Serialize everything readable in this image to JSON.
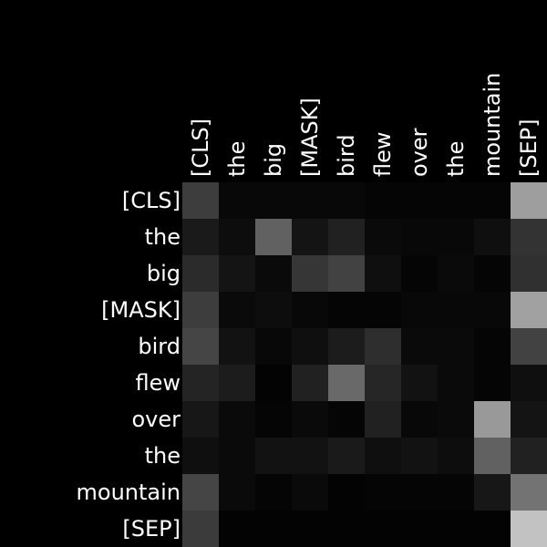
{
  "chart_data": {
    "type": "heatmap",
    "title": "",
    "xlabel": "",
    "ylabel": "",
    "colormap": "grayscale",
    "background": "#000000",
    "x_labels": [
      "[CLS]",
      "the",
      "big",
      "[MASK]",
      "bird",
      "flew",
      "over",
      "the",
      "mountain",
      "[SEP]"
    ],
    "y_labels": [
      "[CLS]",
      "the",
      "big",
      "[MASK]",
      "bird",
      "flew",
      "over",
      "the",
      "mountain",
      "[SEP]"
    ],
    "value_range": [
      0,
      1
    ],
    "values": [
      [
        0.24,
        0.03,
        0.03,
        0.03,
        0.03,
        0.02,
        0.02,
        0.02,
        0.02,
        0.62
      ],
      [
        0.1,
        0.05,
        0.38,
        0.08,
        0.13,
        0.04,
        0.03,
        0.03,
        0.06,
        0.2
      ],
      [
        0.17,
        0.08,
        0.04,
        0.21,
        0.26,
        0.06,
        0.02,
        0.04,
        0.02,
        0.19
      ],
      [
        0.24,
        0.04,
        0.05,
        0.03,
        0.02,
        0.02,
        0.03,
        0.03,
        0.03,
        0.63
      ],
      [
        0.27,
        0.07,
        0.03,
        0.06,
        0.11,
        0.18,
        0.04,
        0.04,
        0.02,
        0.26
      ],
      [
        0.14,
        0.11,
        0.01,
        0.13,
        0.41,
        0.15,
        0.07,
        0.04,
        0.02,
        0.06
      ],
      [
        0.09,
        0.04,
        0.02,
        0.04,
        0.02,
        0.13,
        0.03,
        0.04,
        0.6,
        0.08
      ],
      [
        0.06,
        0.04,
        0.07,
        0.07,
        0.1,
        0.06,
        0.07,
        0.05,
        0.38,
        0.13
      ],
      [
        0.27,
        0.04,
        0.02,
        0.04,
        0.01,
        0.02,
        0.02,
        0.02,
        0.09,
        0.45
      ],
      [
        0.23,
        0.01,
        0.01,
        0.01,
        0.01,
        0.01,
        0.01,
        0.01,
        0.01,
        0.76
      ]
    ],
    "legend": "none",
    "grid": false
  }
}
